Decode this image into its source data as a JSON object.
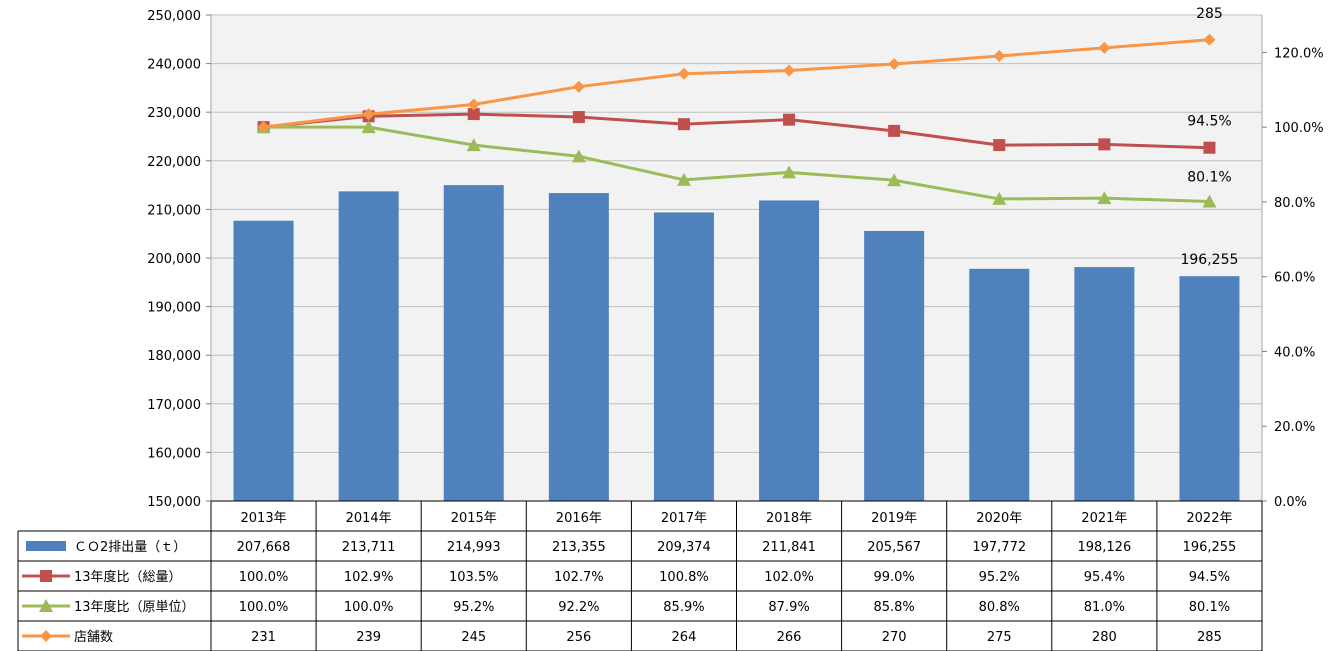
{
  "chart_data": {
    "type": "bar",
    "categories": [
      "2013年",
      "2014年",
      "2015年",
      "2016年",
      "2017年",
      "2018年",
      "2019年",
      "2020年",
      "2021年",
      "2022年"
    ],
    "left_axis": {
      "min": 150000,
      "max": 250000,
      "step": 10000,
      "tick_labels": [
        "150,000",
        "160,000",
        "170,000",
        "180,000",
        "190,000",
        "200,000",
        "210,000",
        "220,000",
        "230,000",
        "240,000",
        "250,000"
      ]
    },
    "right_axis": {
      "min": 0,
      "max": 1.3,
      "tick_values": [
        0,
        0.2,
        0.4,
        0.6,
        0.8,
        1.0,
        1.2
      ],
      "tick_labels": [
        "0.0%",
        "20.0%",
        "40.0%",
        "60.0%",
        "80.0%",
        "100.0%",
        "120.0%"
      ]
    },
    "series": [
      {
        "name": "ＣＯ2排出量（ｔ）",
        "kind": "bar",
        "axis": "left",
        "color": "#4F81BD",
        "marker": "square",
        "values": [
          207668,
          213711,
          214993,
          213355,
          209374,
          211841,
          205567,
          197772,
          198126,
          196255
        ],
        "table_labels": [
          "207,668",
          "213,711",
          "214,993",
          "213,355",
          "209,374",
          "211,841",
          "205,567",
          "197,772",
          "198,126",
          "196,255"
        ],
        "end_label": "196,255"
      },
      {
        "name": "13年度比（総量）",
        "kind": "line",
        "axis": "right",
        "color": "#C0504D",
        "marker": "square",
        "values": [
          1.0,
          1.029,
          1.035,
          1.027,
          1.008,
          1.02,
          0.99,
          0.952,
          0.954,
          0.945
        ],
        "table_labels": [
          "100.0%",
          "102.9%",
          "103.5%",
          "102.7%",
          "100.8%",
          "102.0%",
          "99.0%",
          "95.2%",
          "95.4%",
          "94.5%"
        ],
        "end_label": "94.5%"
      },
      {
        "name": "13年度比（原単位）",
        "kind": "line",
        "axis": "right",
        "color": "#9BBB59",
        "marker": "triangle",
        "values": [
          1.0,
          1.0,
          0.952,
          0.922,
          0.859,
          0.879,
          0.858,
          0.808,
          0.81,
          0.801
        ],
        "table_labels": [
          "100.0%",
          "100.0%",
          "95.2%",
          "92.2%",
          "85.9%",
          "87.9%",
          "85.8%",
          "80.8%",
          "81.0%",
          "80.1%"
        ],
        "end_label": "80.1%"
      },
      {
        "name": "店舗数",
        "kind": "line",
        "axis": "right",
        "color": "#F79646",
        "marker": "diamond",
        "values": [
          231,
          239,
          245,
          256,
          264,
          266,
          270,
          275,
          280,
          285
        ],
        "plotted_as_ratio_of": 231,
        "table_labels": [
          "231",
          "239",
          "245",
          "256",
          "264",
          "266",
          "270",
          "275",
          "280",
          "285"
        ],
        "end_label": "285"
      }
    ],
    "grid": true,
    "legend": "data-table",
    "colors": {
      "plot_bg": "#F2F2F2",
      "gridline": "#BFBFBF",
      "table_border": "#000000"
    }
  }
}
